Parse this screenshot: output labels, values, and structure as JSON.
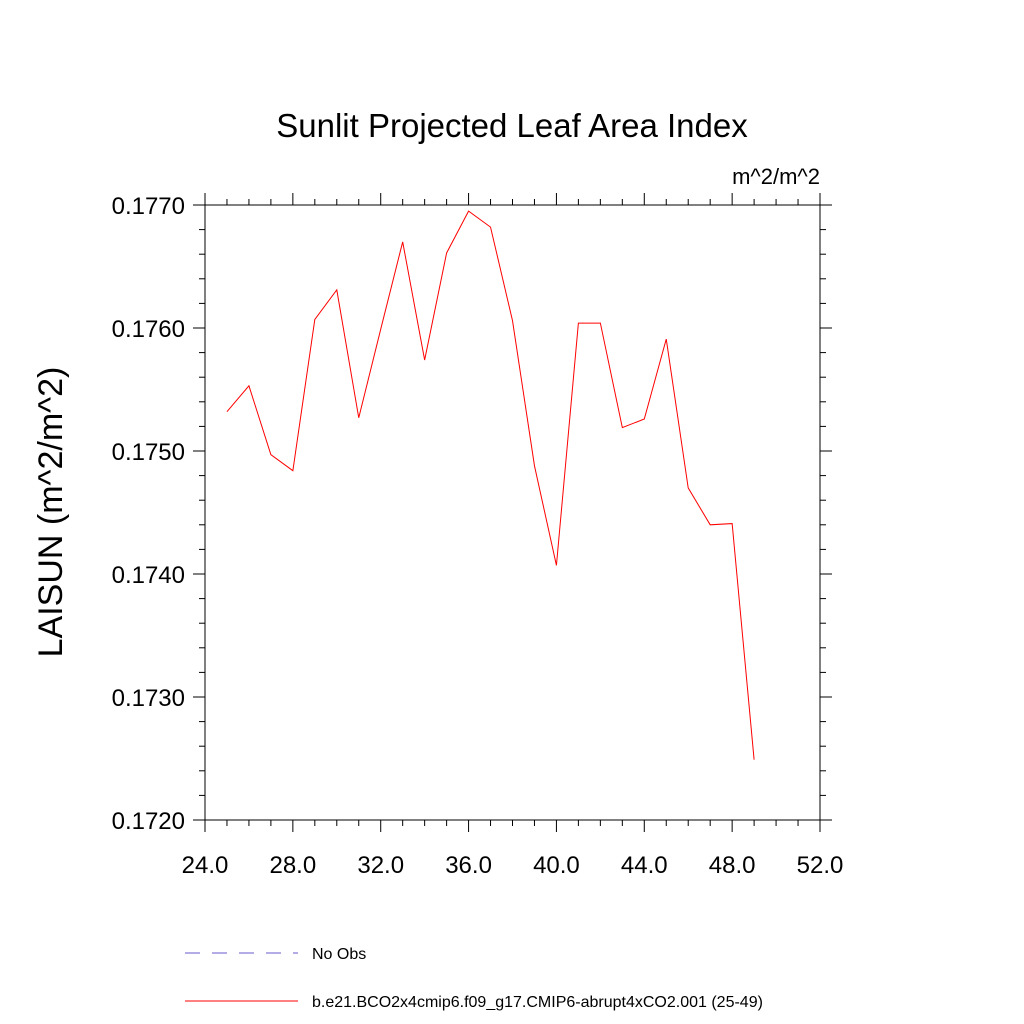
{
  "chart_data": {
    "type": "line",
    "title": "Sunlit Projected Leaf Area Index",
    "units_label": "m^2/m^2",
    "xlabel": "",
    "ylabel": "LAISUN  (m^2/m^2)",
    "xlim": [
      24,
      52
    ],
    "ylim": [
      0.172,
      0.177
    ],
    "x_ticks": [
      "24.0",
      "28.0",
      "32.0",
      "36.0",
      "40.0",
      "44.0",
      "48.0",
      "52.0"
    ],
    "y_ticks": [
      "0.1720",
      "0.1730",
      "0.1740",
      "0.1750",
      "0.1760",
      "0.1770"
    ],
    "series": [
      {
        "name": "b.e21.BCO2x4cmip6.f09_g17.CMIP6-abrupt4xCO2.001 (25-49)",
        "color": "#ff0000",
        "x": [
          25,
          26,
          27,
          28,
          29,
          30,
          31,
          32,
          33,
          34,
          35,
          36,
          37,
          38,
          39,
          40,
          41,
          42,
          43,
          44,
          45,
          46,
          47,
          48,
          49
        ],
        "values": [
          0.17532,
          0.17553,
          0.17497,
          0.17484,
          0.17607,
          0.17631,
          0.17527,
          0.17599,
          0.1767,
          0.17574,
          0.17661,
          0.17695,
          0.17682,
          0.17606,
          0.17488,
          0.17407,
          0.17604,
          0.17604,
          0.17519,
          0.17526,
          0.17591,
          0.1747,
          0.1744,
          0.17441,
          0.17249
        ]
      }
    ],
    "legend": [
      {
        "label": "No Obs",
        "color": "#6a5acd",
        "style": "dashed"
      },
      {
        "label": "b.e21.BCO2x4cmip6.f09_g17.CMIP6-abrupt4xCO2.001 (25-49)",
        "color": "#ff0000",
        "style": "solid"
      }
    ]
  }
}
